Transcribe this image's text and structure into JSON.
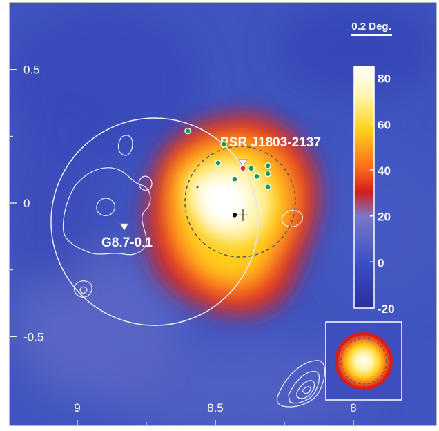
{
  "chart_data": {
    "type": "heatmap",
    "title": "",
    "xlabel": "",
    "ylabel": "",
    "xlim": [
      9.25,
      7.75
    ],
    "ylim": [
      -0.75,
      0.75
    ],
    "x_ticks": [
      "9",
      "8.5",
      "8"
    ],
    "y_ticks": [
      "0.5",
      "0",
      "-0.5"
    ],
    "colorbar": {
      "min": -20,
      "max": 85,
      "ticks": [
        "80",
        "60",
        "40",
        "20",
        "0",
        "-20"
      ],
      "stops": [
        "#2a2f9a",
        "#3a4ec4",
        "#7a78c8",
        "#d21e1e",
        "#ff6a1a",
        "#ffd21e",
        "#fff6b0",
        "#ffffff"
      ]
    },
    "colors": {
      "background": "#4055c0",
      "emission_low": "#d21e1e",
      "emission_mid": "#ffd21e",
      "emission_peak": "#ffffff",
      "contour": "#ffffff",
      "marker_green": "#1a9850",
      "marker_red": "#e03030"
    },
    "scale_bar": {
      "label": "0.2 Deg.",
      "length_deg": 0.2
    },
    "sources": [
      {
        "label": "PSR J1803-2137",
        "l": 8.4,
        "b": 0.15,
        "marker": "white-triangle"
      },
      {
        "label": "G8.7-0.1",
        "l": 8.83,
        "b": -0.09,
        "marker": "white-triangle"
      }
    ],
    "large_circle": {
      "l": 8.72,
      "b": -0.07,
      "radius_deg": 0.375
    },
    "dashed_circle": {
      "l": 8.41,
      "b": 0.005,
      "radius_deg": 0.2
    },
    "best_fit_position": {
      "l": 8.4,
      "b": -0.045,
      "err_l": 0.02,
      "err_b": 0.022
    },
    "black_dot": {
      "l": 8.43,
      "b": -0.045
    },
    "green_markers": [
      {
        "l": 8.6,
        "b": 0.27
      },
      {
        "l": 8.47,
        "b": 0.22
      },
      {
        "l": 8.49,
        "b": 0.15
      },
      {
        "l": 8.37,
        "b": 0.13
      },
      {
        "l": 8.31,
        "b": 0.14
      },
      {
        "l": 8.31,
        "b": 0.11
      },
      {
        "l": 8.35,
        "b": 0.1
      },
      {
        "l": 8.43,
        "b": 0.09
      },
      {
        "l": 8.31,
        "b": 0.06
      }
    ],
    "red_marker": {
      "l": 8.4,
      "b": 0.13
    }
  }
}
